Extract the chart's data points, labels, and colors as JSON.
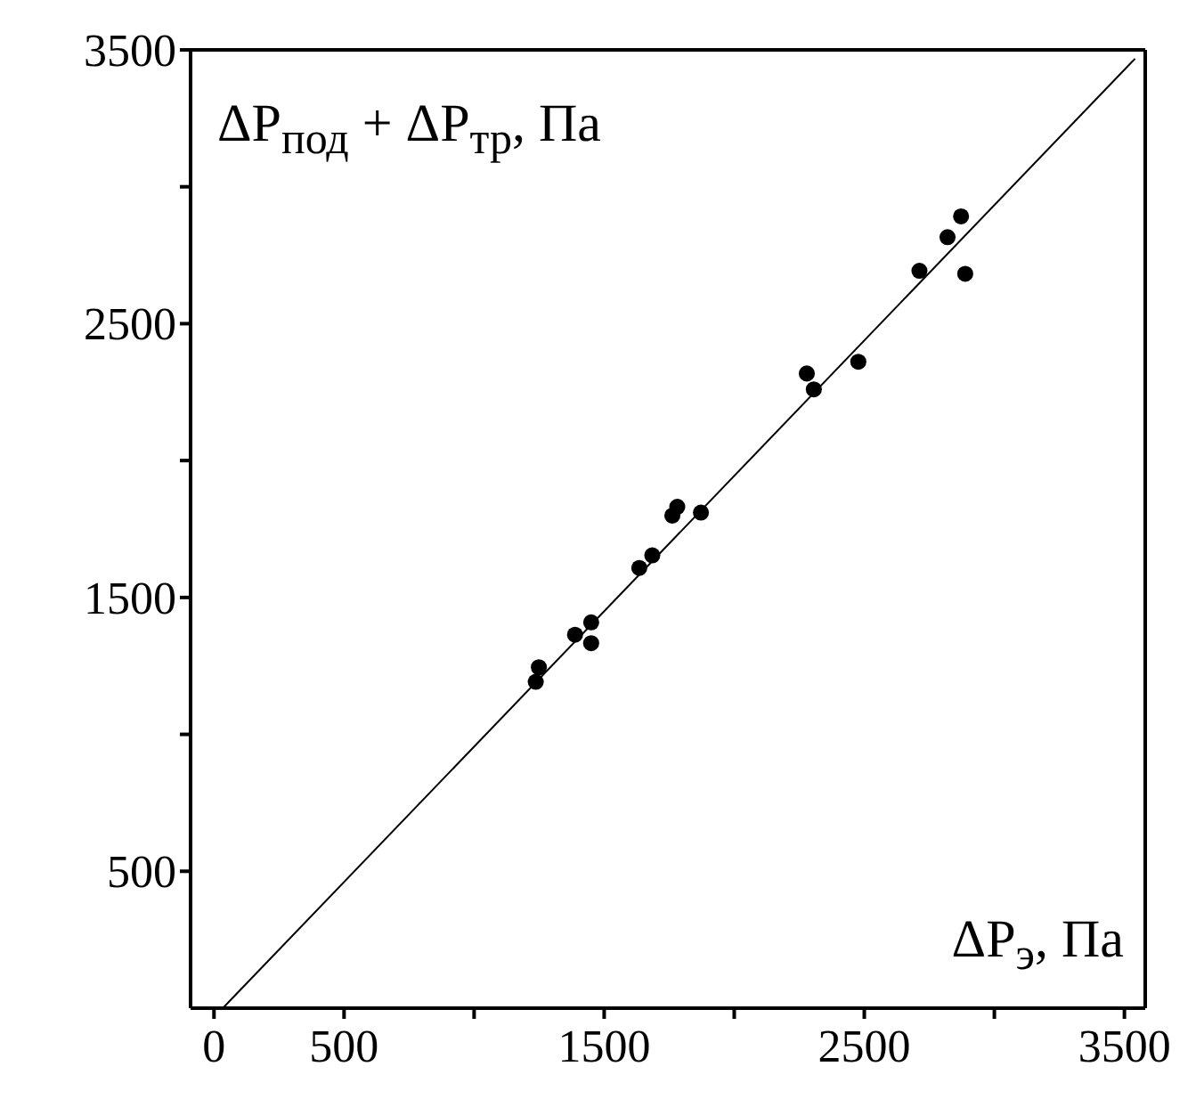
{
  "chart_data": {
    "type": "scatter",
    "xlabel": "ΔP$_{э}$, Па",
    "ylabel": "ΔP$_{под}$ + ΔP$_{тр}$, Па",
    "xlim": [
      -90,
      3580
    ],
    "ylim": [
      0,
      3500
    ],
    "xticks": [
      0,
      500,
      {
        "value": 1000,
        "label": null
      },
      1500,
      {
        "value": 2000,
        "label": null
      },
      2500,
      {
        "value": 3000,
        "label": null
      },
      3500
    ],
    "yticks": [
      500,
      {
        "value": 1000,
        "label": null
      },
      1500,
      {
        "value": 2000,
        "label": null
      },
      2500,
      {
        "value": 3000,
        "label": null
      },
      3500
    ],
    "series": [
      {
        "color": "#000000",
        "marker": "circle",
        "x": [
          1237,
          1249,
          1388,
          1450,
          1450,
          1635,
          1685,
          1762,
          1781,
          1872,
          2279,
          2306,
          2477,
          2712,
          2820,
          2872,
          2888
        ],
        "values": [
          1192,
          1245,
          1364,
          1409,
          1333,
          1608,
          1654,
          1799,
          1831,
          1810,
          2318,
          2260,
          2361,
          2693,
          2816,
          2892,
          2682
        ]
      },
      {
        "type": "line",
        "color": "#000000",
        "marker": "none",
        "line_style": "solid",
        "x": [
          34,
          3541
        ],
        "values": [
          0,
          3468
        ]
      }
    ]
  }
}
